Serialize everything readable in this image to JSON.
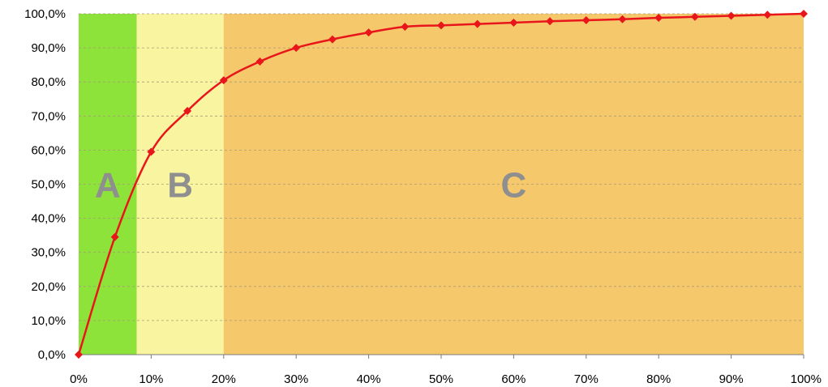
{
  "chart_data": {
    "type": "line",
    "x": [
      0,
      5,
      10,
      15,
      20,
      25,
      30,
      35,
      40,
      45,
      50,
      55,
      60,
      65,
      70,
      75,
      80,
      85,
      90,
      95,
      100
    ],
    "series": [
      {
        "values": [
          0,
          34.5,
          59.5,
          71.5,
          80.5,
          86,
          90,
          92.5,
          94.5,
          96.2,
          96.6,
          97,
          97.4,
          97.8,
          98.1,
          98.4,
          98.8,
          99.1,
          99.4,
          99.7,
          100
        ],
        "color": "#e8161b"
      }
    ],
    "xlim": [
      0,
      100
    ],
    "ylim": [
      0,
      100
    ],
    "x_ticks": [
      0,
      10,
      20,
      30,
      40,
      50,
      60,
      70,
      80,
      90,
      100
    ],
    "x_tick_labels": [
      "0%",
      "10%",
      "20%",
      "30%",
      "40%",
      "50%",
      "60%",
      "70%",
      "80%",
      "90%",
      "100%"
    ],
    "y_ticks": [
      0,
      10,
      20,
      30,
      40,
      50,
      60,
      70,
      80,
      90,
      100
    ],
    "y_tick_labels": [
      "0,0%",
      "10,0%",
      "20,0%",
      "30,0%",
      "40,0%",
      "50,0%",
      "60,0%",
      "70,0%",
      "80,0%",
      "90,0%",
      "100,0%"
    ],
    "grid": "horizontal dashed",
    "zones": [
      {
        "label": "A",
        "x_range": [
          0,
          8
        ],
        "color": "#8ee33a"
      },
      {
        "label": "B",
        "x_range": [
          8,
          20
        ],
        "color": "#f8f4a0"
      },
      {
        "label": "C",
        "x_range": [
          20,
          100
        ],
        "color": "#f5c86c"
      }
    ]
  }
}
